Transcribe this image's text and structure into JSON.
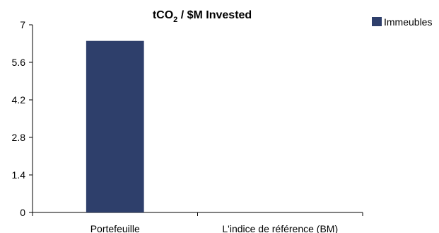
{
  "chart_data": {
    "type": "bar",
    "title_main": "tCO",
    "title_sub": "2",
    "title_rest": " / $M Invested",
    "categories": [
      "Portefeuille",
      "L'indice de référence (BM)"
    ],
    "series": [
      {
        "name": "Immeubles",
        "values": [
          6.4,
          0
        ],
        "color": "#2e3f6b"
      }
    ],
    "yticks": [
      "0",
      "1.4",
      "2.8",
      "4.2",
      "5.6",
      "7"
    ],
    "ylim": [
      0,
      7
    ],
    "grid": false,
    "legend_position": "top-right"
  }
}
